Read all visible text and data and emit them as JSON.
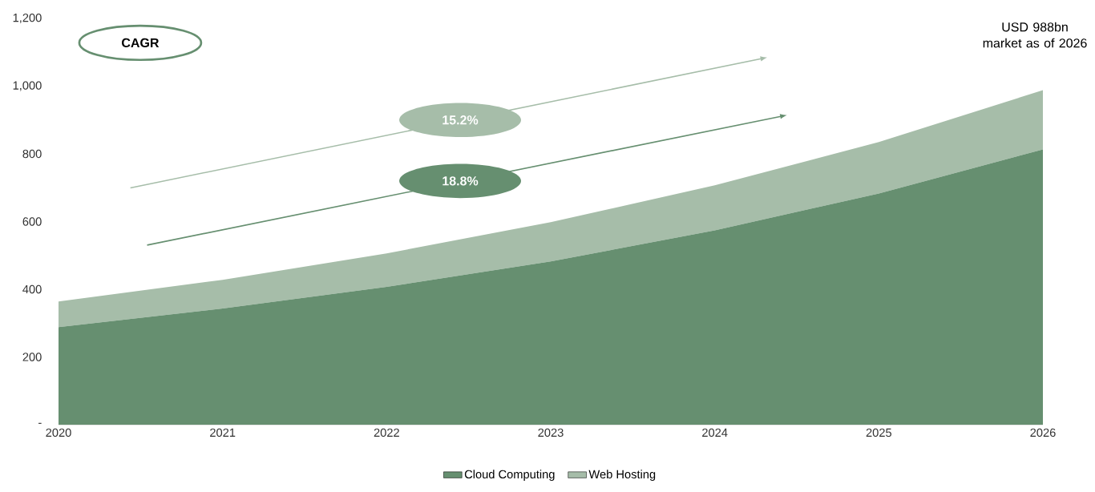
{
  "chart_data": {
    "type": "area",
    "stacked": true,
    "categories": [
      "2020",
      "2021",
      "2022",
      "2023",
      "2024",
      "2025",
      "2026"
    ],
    "series": [
      {
        "name": "Cloud Computing",
        "color": "#668f70",
        "values": [
          288,
          343,
          407,
          482,
          574,
          683,
          813
        ]
      },
      {
        "name": "Web Hosting",
        "color": "#a6bda9",
        "values": [
          76,
          85,
          99,
          116,
          133,
          152,
          175
        ]
      }
    ],
    "ylim": [
      0,
      1200
    ],
    "yticks": [
      {
        "value": 0,
        "label": "-"
      },
      {
        "value": 200,
        "label": "200"
      },
      {
        "value": 400,
        "label": "400"
      },
      {
        "value": 600,
        "label": "600"
      },
      {
        "value": 800,
        "label": "800"
      },
      {
        "value": 1000,
        "label": "1,000"
      },
      {
        "value": 1200,
        "label": "1,200"
      }
    ],
    "grid": false,
    "legend": "bottom",
    "annotations": [
      "CAGR",
      "15.2%",
      "18.8%",
      "USD 988bn market as of 2026"
    ]
  }
}
